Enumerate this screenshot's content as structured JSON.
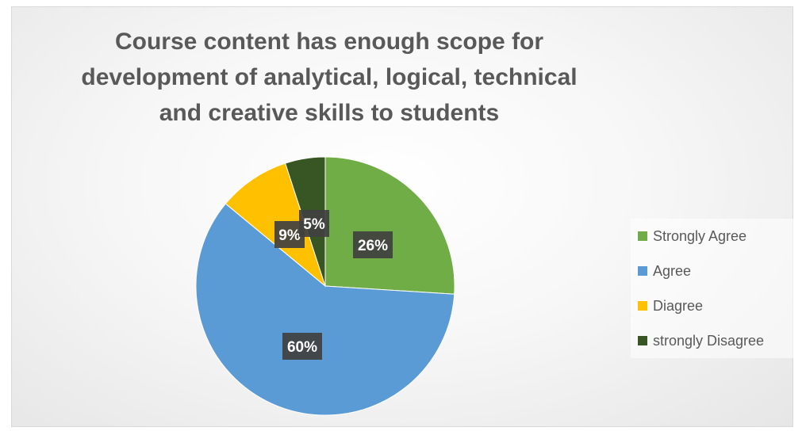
{
  "chart_data": {
    "type": "pie",
    "title": "Course content has enough scope for development of analytical, logical, technical and creative skills to students",
    "slices": [
      {
        "label": "Strongly Agree",
        "value": 26,
        "data_label": "26%",
        "color": "#70ad47"
      },
      {
        "label": "Agree",
        "value": 60,
        "data_label": "60%",
        "color": "#5b9bd5"
      },
      {
        "label": "Diagree",
        "value": 9,
        "data_label": "9%",
        "color": "#ffc000"
      },
      {
        "label": "strongly Disagree",
        "value": 5,
        "data_label": "5%",
        "color": "#375623"
      }
    ],
    "start_angle_deg": 0,
    "direction": "clockwise",
    "legend_position": "right"
  }
}
